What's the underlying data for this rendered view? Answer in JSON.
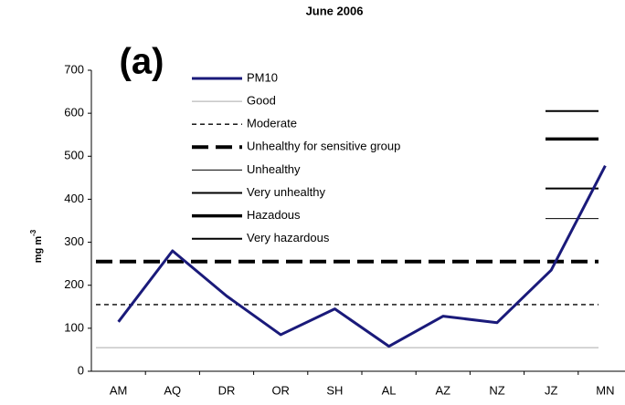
{
  "chart_data": {
    "type": "line",
    "title": "June 2006",
    "panel_label": "(a)",
    "ylabel": "mg m",
    "ylabel_superscript": "-3",
    "categories": [
      "AM",
      "AQ",
      "DR",
      "OR",
      "SH",
      "AL",
      "AZ",
      "NZ",
      "JZ",
      "MN"
    ],
    "series": [
      {
        "name": "PM10",
        "color": "#1a1a7a",
        "values": [
          115,
          280,
          175,
          85,
          145,
          58,
          128,
          113,
          235,
          478
        ]
      }
    ],
    "thresholds": [
      {
        "name": "Good",
        "value": 55,
        "color": "#aaaaaa",
        "width": 1,
        "dash": "none",
        "span": "full"
      },
      {
        "name": "Moderate",
        "value": 155,
        "color": "#000000",
        "width": 1.3,
        "dash": "5,4",
        "span": "full"
      },
      {
        "name": "Unhealthy for sensitive group",
        "value": 255,
        "color": "#000000",
        "width": 4,
        "dash": "18,8",
        "span": "full"
      },
      {
        "name": "Unhealthy",
        "value": 355,
        "color": "#000000",
        "width": 1,
        "dash": "none",
        "span": "right"
      },
      {
        "name": "Very unhealthy",
        "value": 425,
        "color": "#000000",
        "width": 2,
        "dash": "none",
        "span": "right"
      },
      {
        "name": "Hazadous",
        "value": 540,
        "color": "#000000",
        "width": 3.5,
        "dash": "none",
        "span": "right"
      },
      {
        "name": "Very hazardous",
        "value": 605,
        "color": "#000000",
        "width": 2,
        "dash": "none",
        "span": "right"
      }
    ],
    "ylim": [
      0,
      700
    ],
    "yticks": [
      0,
      100,
      200,
      300,
      400,
      500,
      600,
      700
    ]
  }
}
